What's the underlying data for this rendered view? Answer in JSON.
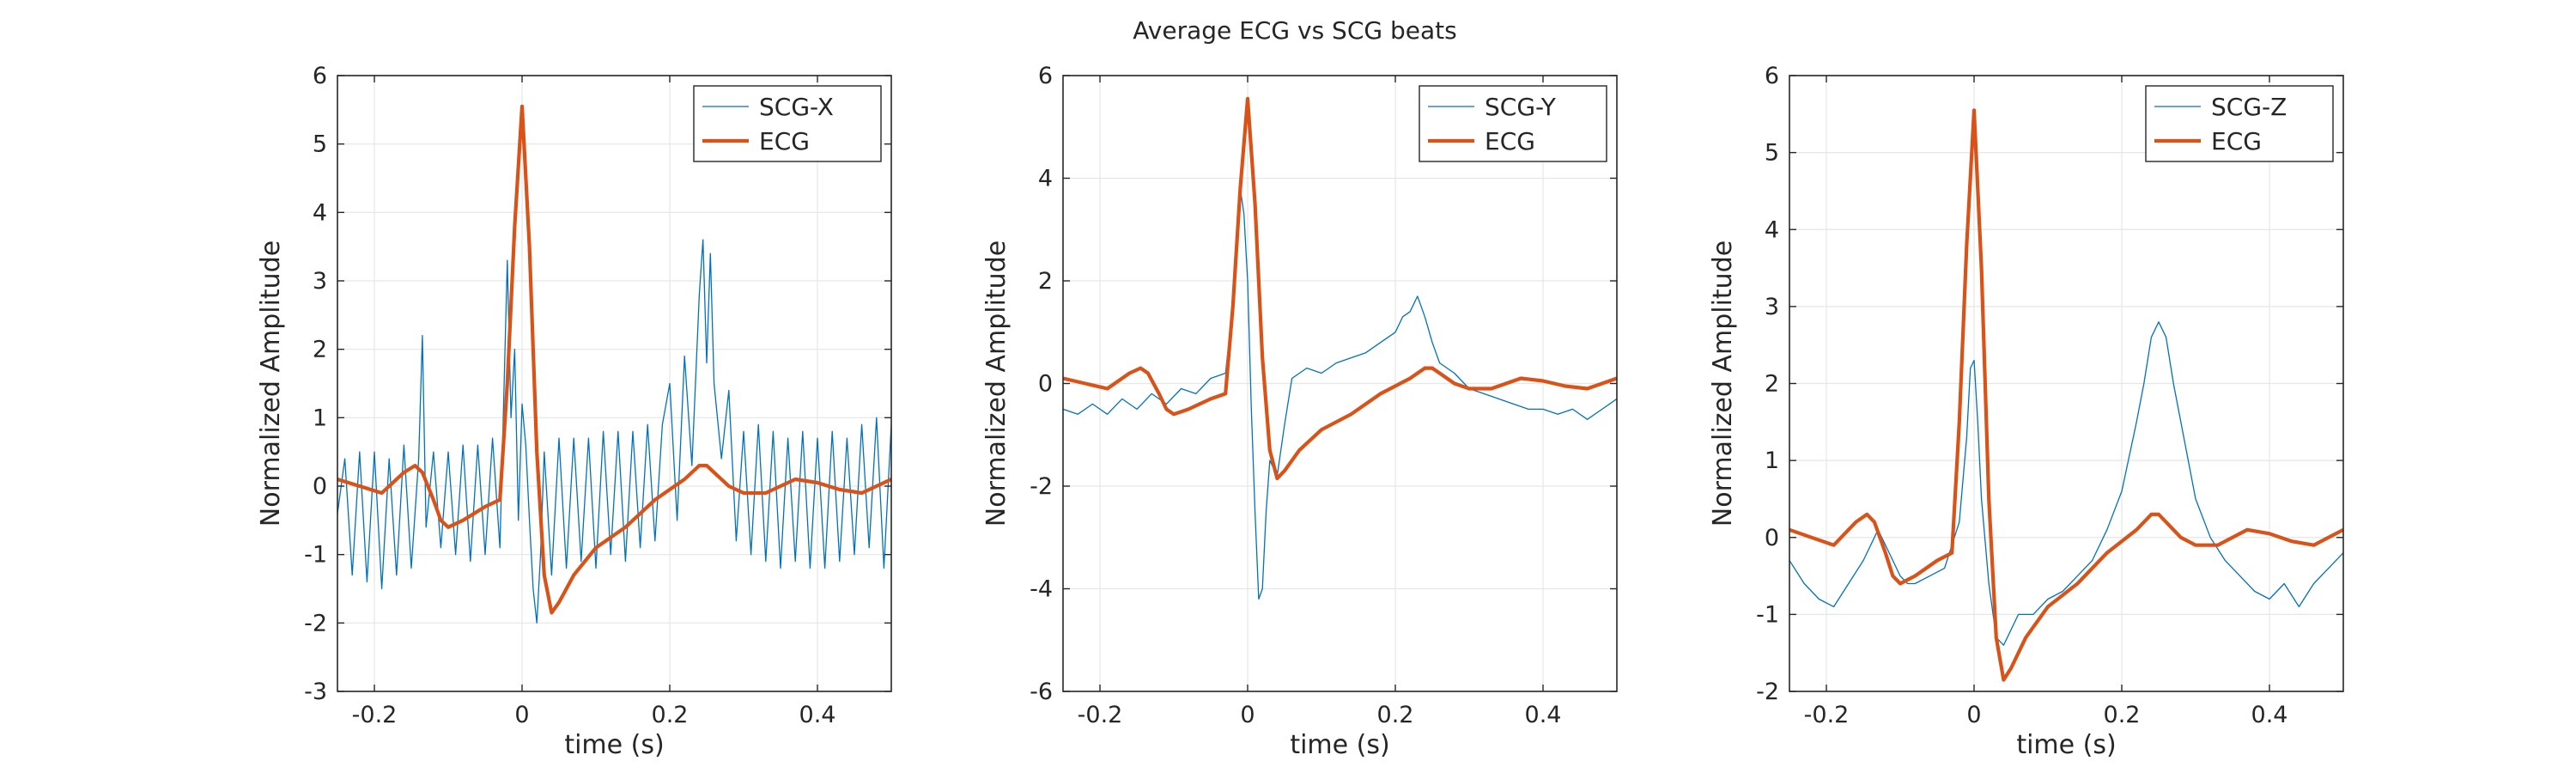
{
  "figure": {
    "title": "Average ECG vs SCG beats"
  },
  "style": {
    "scg_color": "#0072BD",
    "ecg_color": "#D95319",
    "grid_color": "#e6e6e6",
    "axis_color": "#262626"
  },
  "chart_data": [
    {
      "type": "line",
      "xlabel": "time (s)",
      "ylabel": "Normalized Amplitude",
      "xlim": [
        -0.25,
        0.5
      ],
      "ylim": [
        -3,
        6
      ],
      "xticks": [
        -0.2,
        0,
        0.2,
        0.4
      ],
      "xtick_labels": [
        "-0.2",
        "0",
        "0.2",
        "0.4"
      ],
      "yticks": [
        -3,
        -2,
        -1,
        0,
        1,
        2,
        3,
        4,
        5,
        6
      ],
      "ytick_labels": [
        "-3",
        "-2",
        "-1",
        "0",
        "1",
        "2",
        "3",
        "4",
        "5",
        "6"
      ],
      "grid": true,
      "legend": "top-right",
      "series": [
        {
          "name": "SCG-X",
          "x": [
            -0.25,
            -0.24,
            -0.23,
            -0.22,
            -0.21,
            -0.2,
            -0.19,
            -0.18,
            -0.17,
            -0.16,
            -0.15,
            -0.14,
            -0.135,
            -0.13,
            -0.12,
            -0.11,
            -0.1,
            -0.09,
            -0.08,
            -0.07,
            -0.06,
            -0.05,
            -0.04,
            -0.03,
            -0.02,
            -0.015,
            -0.01,
            -0.005,
            0,
            0.005,
            0.01,
            0.015,
            0.02,
            0.025,
            0.03,
            0.04,
            0.05,
            0.06,
            0.07,
            0.08,
            0.09,
            0.1,
            0.11,
            0.12,
            0.13,
            0.14,
            0.15,
            0.16,
            0.17,
            0.18,
            0.19,
            0.2,
            0.21,
            0.22,
            0.23,
            0.24,
            0.245,
            0.25,
            0.255,
            0.26,
            0.27,
            0.28,
            0.29,
            0.3,
            0.31,
            0.32,
            0.33,
            0.34,
            0.35,
            0.36,
            0.37,
            0.38,
            0.39,
            0.4,
            0.41,
            0.42,
            0.43,
            0.44,
            0.45,
            0.46,
            0.47,
            0.48,
            0.49,
            0.5
          ],
          "y": [
            -0.4,
            0.4,
            -1.3,
            0.5,
            -1.4,
            0.5,
            -1.5,
            0.4,
            -1.3,
            0.6,
            -1.2,
            0.4,
            2.2,
            -0.6,
            0.5,
            -0.9,
            0.5,
            -1.0,
            0.6,
            -1.1,
            0.6,
            -1.0,
            0.7,
            -0.9,
            3.3,
            1.0,
            2.0,
            -0.5,
            1.2,
            0.6,
            -0.5,
            -1.5,
            -2.0,
            -1.0,
            0.5,
            -1.3,
            0.7,
            -1.2,
            0.7,
            -1.1,
            0.7,
            -1.2,
            0.8,
            -1.0,
            0.8,
            -1.1,
            0.8,
            -0.9,
            0.9,
            -0.8,
            0.9,
            1.5,
            -0.5,
            1.9,
            0.3,
            2.8,
            3.6,
            1.8,
            3.4,
            1.5,
            0.4,
            1.4,
            -0.8,
            0.8,
            -1.0,
            0.9,
            -1.1,
            0.8,
            -1.2,
            0.7,
            -1.1,
            0.8,
            -1.2,
            0.7,
            -1.2,
            0.8,
            -1.1,
            0.7,
            -1.0,
            0.9,
            -0.9,
            1.0,
            -1.2,
            0.9
          ]
        },
        {
          "name": "ECG",
          "x": [
            -0.25,
            -0.22,
            -0.19,
            -0.16,
            -0.145,
            -0.135,
            -0.12,
            -0.11,
            -0.1,
            -0.09,
            -0.08,
            -0.05,
            -0.03,
            -0.02,
            -0.01,
            0,
            0.01,
            0.02,
            0.03,
            0.04,
            0.05,
            0.07,
            0.1,
            0.14,
            0.18,
            0.22,
            0.24,
            0.25,
            0.26,
            0.28,
            0.3,
            0.33,
            0.37,
            0.4,
            0.43,
            0.46,
            0.48,
            0.5
          ],
          "y": [
            0.1,
            0.0,
            -0.1,
            0.2,
            0.3,
            0.2,
            -0.2,
            -0.5,
            -0.6,
            -0.55,
            -0.5,
            -0.3,
            -0.2,
            1.5,
            3.8,
            5.55,
            3.5,
            0.5,
            -1.3,
            -1.85,
            -1.7,
            -1.3,
            -0.9,
            -0.6,
            -0.2,
            0.1,
            0.3,
            0.3,
            0.2,
            0.0,
            -0.1,
            -0.1,
            0.1,
            0.05,
            -0.05,
            -0.1,
            0.0,
            0.1
          ]
        }
      ]
    },
    {
      "type": "line",
      "xlabel": "time (s)",
      "ylabel": "Normalized Amplitude",
      "xlim": [
        -0.25,
        0.5
      ],
      "ylim": [
        -6,
        6
      ],
      "xticks": [
        -0.2,
        0,
        0.2,
        0.4
      ],
      "xtick_labels": [
        "-0.2",
        "0",
        "0.2",
        "0.4"
      ],
      "yticks": [
        -6,
        -4,
        -2,
        0,
        2,
        4,
        6
      ],
      "ytick_labels": [
        "-6",
        "-4",
        "-2",
        "0",
        "2",
        "4",
        "6"
      ],
      "grid": true,
      "legend": "top-right",
      "series": [
        {
          "name": "SCG-Y",
          "x": [
            -0.25,
            -0.23,
            -0.21,
            -0.19,
            -0.17,
            -0.15,
            -0.13,
            -0.11,
            -0.09,
            -0.07,
            -0.05,
            -0.03,
            -0.02,
            -0.01,
            -0.005,
            0,
            0.005,
            0.01,
            0.015,
            0.02,
            0.025,
            0.03,
            0.04,
            0.05,
            0.06,
            0.08,
            0.1,
            0.12,
            0.14,
            0.16,
            0.18,
            0.2,
            0.21,
            0.22,
            0.23,
            0.24,
            0.25,
            0.26,
            0.28,
            0.3,
            0.32,
            0.34,
            0.36,
            0.38,
            0.4,
            0.42,
            0.44,
            0.46,
            0.48,
            0.5
          ],
          "y": [
            -0.5,
            -0.6,
            -0.4,
            -0.6,
            -0.3,
            -0.5,
            -0.2,
            -0.4,
            -0.1,
            -0.2,
            0.1,
            0.2,
            1.5,
            3.8,
            3.3,
            2.0,
            -0.5,
            -2.5,
            -4.2,
            -4.0,
            -2.5,
            -1.5,
            -1.8,
            -0.8,
            0.1,
            0.3,
            0.2,
            0.4,
            0.5,
            0.6,
            0.8,
            1.0,
            1.3,
            1.4,
            1.7,
            1.3,
            0.8,
            0.4,
            0.2,
            -0.1,
            -0.2,
            -0.3,
            -0.4,
            -0.5,
            -0.5,
            -0.6,
            -0.5,
            -0.7,
            -0.5,
            -0.3
          ]
        },
        {
          "name": "ECG",
          "x": [
            -0.25,
            -0.22,
            -0.19,
            -0.16,
            -0.145,
            -0.135,
            -0.12,
            -0.11,
            -0.1,
            -0.09,
            -0.08,
            -0.05,
            -0.03,
            -0.02,
            -0.01,
            0,
            0.01,
            0.02,
            0.03,
            0.04,
            0.05,
            0.07,
            0.1,
            0.14,
            0.18,
            0.22,
            0.24,
            0.25,
            0.26,
            0.28,
            0.3,
            0.33,
            0.37,
            0.4,
            0.43,
            0.46,
            0.48,
            0.5
          ],
          "y": [
            0.1,
            0.0,
            -0.1,
            0.2,
            0.3,
            0.2,
            -0.2,
            -0.5,
            -0.6,
            -0.55,
            -0.5,
            -0.3,
            -0.2,
            1.5,
            3.8,
            5.55,
            3.5,
            0.5,
            -1.3,
            -1.85,
            -1.7,
            -1.3,
            -0.9,
            -0.6,
            -0.2,
            0.1,
            0.3,
            0.3,
            0.2,
            0.0,
            -0.1,
            -0.1,
            0.1,
            0.05,
            -0.05,
            -0.1,
            0.0,
            0.1
          ]
        }
      ]
    },
    {
      "type": "line",
      "xlabel": "time (s)",
      "ylabel": "Normalized Amplitude",
      "xlim": [
        -0.25,
        0.5
      ],
      "ylim": [
        -2,
        6
      ],
      "xticks": [
        -0.2,
        0,
        0.2,
        0.4
      ],
      "xtick_labels": [
        "-0.2",
        "0",
        "0.2",
        "0.4"
      ],
      "yticks": [
        -2,
        -1,
        0,
        1,
        2,
        3,
        4,
        5,
        6
      ],
      "ytick_labels": [
        "-2",
        "-1",
        "0",
        "1",
        "2",
        "3",
        "4",
        "5",
        "6"
      ],
      "grid": true,
      "legend": "top-right",
      "series": [
        {
          "name": "SCG-Z",
          "x": [
            -0.25,
            -0.23,
            -0.21,
            -0.19,
            -0.17,
            -0.15,
            -0.14,
            -0.13,
            -0.12,
            -0.11,
            -0.1,
            -0.09,
            -0.08,
            -0.06,
            -0.04,
            -0.02,
            -0.01,
            -0.005,
            0,
            0.005,
            0.01,
            0.02,
            0.03,
            0.04,
            0.06,
            0.08,
            0.1,
            0.12,
            0.14,
            0.16,
            0.18,
            0.2,
            0.22,
            0.23,
            0.24,
            0.25,
            0.26,
            0.27,
            0.28,
            0.3,
            0.32,
            0.34,
            0.36,
            0.38,
            0.4,
            0.42,
            0.44,
            0.46,
            0.48,
            0.5
          ],
          "y": [
            -0.3,
            -0.6,
            -0.8,
            -0.9,
            -0.6,
            -0.3,
            -0.1,
            0.1,
            -0.1,
            -0.3,
            -0.5,
            -0.6,
            -0.6,
            -0.5,
            -0.4,
            0.2,
            1.3,
            2.2,
            2.3,
            1.5,
            0.5,
            -0.6,
            -1.3,
            -1.4,
            -1.0,
            -1.0,
            -0.8,
            -0.7,
            -0.5,
            -0.3,
            0.1,
            0.6,
            1.5,
            2.0,
            2.6,
            2.8,
            2.6,
            2.0,
            1.5,
            0.5,
            0.0,
            -0.3,
            -0.5,
            -0.7,
            -0.8,
            -0.6,
            -0.9,
            -0.6,
            -0.4,
            -0.2
          ]
        },
        {
          "name": "ECG",
          "x": [
            -0.25,
            -0.22,
            -0.19,
            -0.16,
            -0.145,
            -0.135,
            -0.12,
            -0.11,
            -0.1,
            -0.09,
            -0.08,
            -0.05,
            -0.03,
            -0.02,
            -0.01,
            0,
            0.01,
            0.02,
            0.03,
            0.04,
            0.05,
            0.07,
            0.1,
            0.14,
            0.18,
            0.22,
            0.24,
            0.25,
            0.26,
            0.28,
            0.3,
            0.33,
            0.37,
            0.4,
            0.43,
            0.46,
            0.48,
            0.5
          ],
          "y": [
            0.1,
            0.0,
            -0.1,
            0.2,
            0.3,
            0.2,
            -0.2,
            -0.5,
            -0.6,
            -0.55,
            -0.5,
            -0.3,
            -0.2,
            1.5,
            3.8,
            5.55,
            3.5,
            0.5,
            -1.3,
            -1.85,
            -1.7,
            -1.3,
            -0.9,
            -0.6,
            -0.2,
            0.1,
            0.3,
            0.3,
            0.2,
            0.0,
            -0.1,
            -0.1,
            0.1,
            0.05,
            -0.05,
            -0.1,
            0.0,
            0.1
          ]
        }
      ]
    }
  ]
}
